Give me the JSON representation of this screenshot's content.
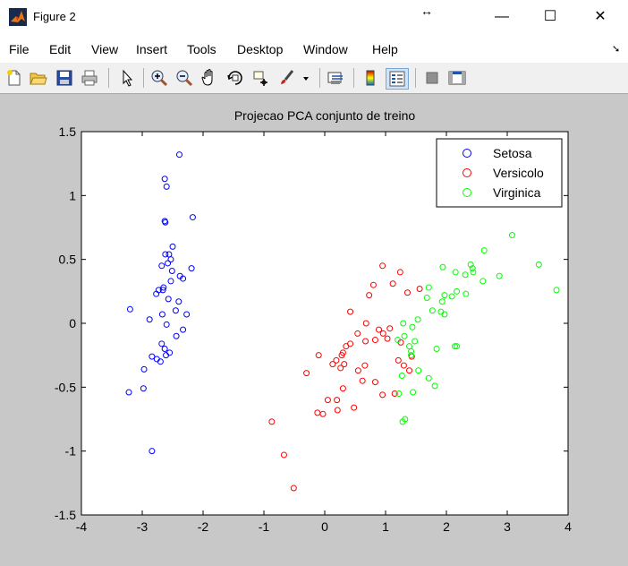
{
  "window": {
    "title": "Figure 2",
    "minimize_label": "—",
    "maximize_label": "☐",
    "close_label": "✕"
  },
  "menu": {
    "items": [
      "File",
      "Edit",
      "View",
      "Insert",
      "Tools",
      "Desktop",
      "Window",
      "Help"
    ]
  },
  "toolbar": {
    "icons": [
      "new-figure-icon",
      "open-file-icon",
      "save-icon",
      "print-icon",
      "select-arrow-icon",
      "zoom-in-icon",
      "zoom-out-icon",
      "pan-hand-icon",
      "rotate-3d-icon",
      "data-cursor-icon",
      "brush-icon",
      "link-plot-icon",
      "colorbar-icon",
      "legend-icon",
      "hide-plot-tools-icon",
      "show-plot-tools-icon"
    ]
  },
  "chart_data": {
    "type": "scatter",
    "title": "Projecao PCA conjunto de treino",
    "xlabel": "",
    "ylabel": "",
    "xlim": [
      -4,
      4
    ],
    "ylim": [
      -1.5,
      1.5
    ],
    "xticks": [
      "-4",
      "-3",
      "-2",
      "-1",
      "0",
      "1",
      "2",
      "3",
      "4"
    ],
    "yticks": [
      "1.5",
      "1",
      "0.5",
      "0",
      "-0.5",
      "-1",
      "-1.5"
    ],
    "legend_position": "top-right",
    "marker": "circle",
    "series": [
      {
        "name": "Setosa",
        "color": "#0000ff",
        "points": [
          [
            -2.39,
            1.32
          ],
          [
            -2.63,
            1.13
          ],
          [
            -2.6,
            1.07
          ],
          [
            -2.63,
            0.8
          ],
          [
            -2.62,
            0.79
          ],
          [
            -2.17,
            0.83
          ],
          [
            -2.5,
            0.6
          ],
          [
            -2.62,
            0.54
          ],
          [
            -2.56,
            0.54
          ],
          [
            -2.53,
            0.5
          ],
          [
            -2.58,
            0.47
          ],
          [
            -2.68,
            0.45
          ],
          [
            -2.19,
            0.43
          ],
          [
            -2.51,
            0.41
          ],
          [
            -2.38,
            0.37
          ],
          [
            -2.33,
            0.35
          ],
          [
            -2.53,
            0.33
          ],
          [
            -2.65,
            0.28
          ],
          [
            -2.66,
            0.26
          ],
          [
            -2.73,
            0.26
          ],
          [
            -2.77,
            0.23
          ],
          [
            -2.57,
            0.19
          ],
          [
            -2.4,
            0.17
          ],
          [
            -2.45,
            0.1
          ],
          [
            -3.2,
            0.11
          ],
          [
            -2.67,
            0.07
          ],
          [
            -2.27,
            0.07
          ],
          [
            -2.88,
            0.03
          ],
          [
            -2.6,
            -0.01
          ],
          [
            -2.33,
            -0.05
          ],
          [
            -2.44,
            -0.1
          ],
          [
            -2.68,
            -0.16
          ],
          [
            -2.63,
            -0.2
          ],
          [
            -2.55,
            -0.23
          ],
          [
            -2.61,
            -0.25
          ],
          [
            -2.84,
            -0.26
          ],
          [
            -2.76,
            -0.28
          ],
          [
            -2.7,
            -0.3
          ],
          [
            -2.97,
            -0.36
          ],
          [
            -3.22,
            -0.54
          ],
          [
            -2.98,
            -0.51
          ],
          [
            -2.84,
            -1.0
          ]
        ]
      },
      {
        "name": "Versicolo",
        "color": "#ff0000",
        "points": [
          [
            0.95,
            0.45
          ],
          [
            1.24,
            0.4
          ],
          [
            0.8,
            0.3
          ],
          [
            1.12,
            0.31
          ],
          [
            0.73,
            0.22
          ],
          [
            1.36,
            0.24
          ],
          [
            1.56,
            0.27
          ],
          [
            0.42,
            0.09
          ],
          [
            0.68,
            0.0
          ],
          [
            0.89,
            -0.05
          ],
          [
            0.96,
            -0.08
          ],
          [
            1.07,
            -0.04
          ],
          [
            0.54,
            -0.08
          ],
          [
            0.42,
            -0.16
          ],
          [
            0.35,
            -0.18
          ],
          [
            0.3,
            -0.23
          ],
          [
            0.67,
            -0.14
          ],
          [
            0.83,
            -0.13
          ],
          [
            1.03,
            -0.12
          ],
          [
            1.25,
            -0.15
          ],
          [
            -0.1,
            -0.25
          ],
          [
            0.28,
            -0.25
          ],
          [
            0.19,
            -0.29
          ],
          [
            0.13,
            -0.32
          ],
          [
            0.26,
            -0.35
          ],
          [
            0.32,
            -0.32
          ],
          [
            1.21,
            -0.29
          ],
          [
            1.43,
            -0.26
          ],
          [
            -0.3,
            -0.39
          ],
          [
            0.55,
            -0.37
          ],
          [
            0.66,
            -0.33
          ],
          [
            1.3,
            -0.33
          ],
          [
            1.39,
            -0.37
          ],
          [
            0.62,
            -0.45
          ],
          [
            0.83,
            -0.46
          ],
          [
            0.3,
            -0.51
          ],
          [
            0.95,
            -0.56
          ],
          [
            1.15,
            -0.55
          ],
          [
            0.05,
            -0.6
          ],
          [
            0.2,
            -0.6
          ],
          [
            0.21,
            -0.68
          ],
          [
            0.48,
            -0.66
          ],
          [
            -0.12,
            -0.7
          ],
          [
            -0.03,
            -0.71
          ],
          [
            -0.87,
            -0.77
          ],
          [
            -0.67,
            -1.03
          ],
          [
            -0.51,
            -1.29
          ]
        ]
      },
      {
        "name": "Virginica",
        "color": "#00ff00",
        "points": [
          [
            3.08,
            0.69
          ],
          [
            2.62,
            0.57
          ],
          [
            3.52,
            0.46
          ],
          [
            3.81,
            0.26
          ],
          [
            2.4,
            0.46
          ],
          [
            2.43,
            0.43
          ],
          [
            1.94,
            0.44
          ],
          [
            2.15,
            0.4
          ],
          [
            2.31,
            0.38
          ],
          [
            2.44,
            0.4
          ],
          [
            2.87,
            0.37
          ],
          [
            2.6,
            0.33
          ],
          [
            1.71,
            0.28
          ],
          [
            2.17,
            0.25
          ],
          [
            1.97,
            0.22
          ],
          [
            2.32,
            0.23
          ],
          [
            1.68,
            0.2
          ],
          [
            2.09,
            0.21
          ],
          [
            1.93,
            0.17
          ],
          [
            1.91,
            0.09
          ],
          [
            1.77,
            0.1
          ],
          [
            1.97,
            0.07
          ],
          [
            1.53,
            0.03
          ],
          [
            1.29,
            0.0
          ],
          [
            1.44,
            -0.03
          ],
          [
            1.31,
            -0.1
          ],
          [
            1.2,
            -0.13
          ],
          [
            1.48,
            -0.14
          ],
          [
            1.39,
            -0.18
          ],
          [
            1.84,
            -0.2
          ],
          [
            2.14,
            -0.18
          ],
          [
            2.17,
            -0.18
          ],
          [
            1.42,
            -0.22
          ],
          [
            1.42,
            -0.25
          ],
          [
            1.54,
            -0.37
          ],
          [
            1.71,
            -0.43
          ],
          [
            1.27,
            -0.41
          ],
          [
            1.81,
            -0.49
          ],
          [
            1.45,
            -0.54
          ],
          [
            1.22,
            -0.55
          ],
          [
            1.32,
            -0.75
          ],
          [
            1.28,
            -0.77
          ]
        ]
      }
    ]
  }
}
